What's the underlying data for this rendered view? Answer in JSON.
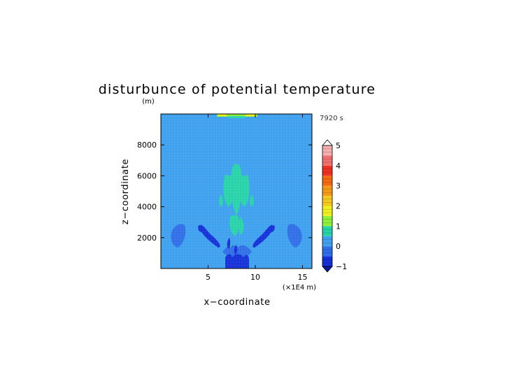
{
  "chart_data": {
    "type": "heatmap",
    "title": "disturbunce of potential temperature",
    "time_label": "7920 s",
    "ylabel": "z−coordinate",
    "yunit": "(m)",
    "xlabel": "x−coordinate",
    "xunit": "(×1E4 m)",
    "x_ticks": [
      5,
      10,
      15
    ],
    "y_ticks": [
      2000,
      4000,
      6000,
      8000
    ],
    "xlim": [
      0,
      16
    ],
    "ylim": [
      0,
      10000
    ],
    "colorbar": {
      "ticks": [
        -1,
        0,
        1,
        2,
        3,
        4,
        5
      ],
      "levels": [
        -1,
        -0.5,
        0,
        0.5,
        1,
        1.5,
        2,
        2.5,
        3,
        3.5,
        4,
        4.5,
        5
      ],
      "colors": [
        "#1430d8",
        "#2f6ee8",
        "#3ea0ee",
        "#26d2a8",
        "#8ef03a",
        "#f0f020",
        "#f5c820",
        "#f59a18",
        "#f56a10",
        "#f03020",
        "#f07070",
        "#f4aeae"
      ]
    },
    "background_level": -0.25
  }
}
